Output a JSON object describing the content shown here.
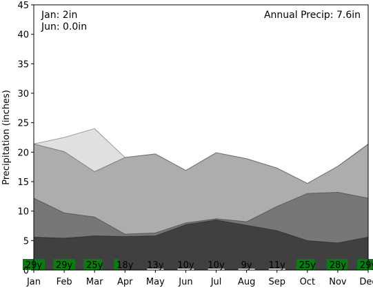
{
  "chart_data": {
    "type": "area",
    "categories": [
      "Jan",
      "Feb",
      "Mar",
      "Apr",
      "May",
      "Jun",
      "Jul",
      "Aug",
      "Sep",
      "Oct",
      "Nov",
      "Dec"
    ],
    "ylabel": "Precipitation (inches)",
    "ylim": [
      0,
      45
    ],
    "yticks": [
      0,
      5,
      10,
      15,
      20,
      25,
      30,
      35,
      40,
      45
    ],
    "grid": false,
    "annotations": {
      "top_left_1": "Jan: 2in",
      "top_left_2": "Jun: 0.0in",
      "top_right": "Annual Precip: 7.6in"
    },
    "series": [
      {
        "values": [
          21.4,
          22.5,
          24.0,
          19.1,
          19.7,
          16.9,
          19.9,
          18.9,
          17.3,
          14.7,
          17.6,
          21.4
        ],
        "color": "#e0e0e0"
      },
      {
        "values": [
          21.4,
          20.1,
          16.7,
          19.1,
          19.7,
          16.9,
          19.9,
          18.9,
          17.3,
          14.7,
          17.6,
          21.3
        ],
        "color": "#adadad"
      },
      {
        "values": [
          12.2,
          9.7,
          9.0,
          6.1,
          6.3,
          8.0,
          8.7,
          8.2,
          10.8,
          13.0,
          13.2,
          12.2
        ],
        "color": "#777777"
      },
      {
        "values": [
          5.6,
          5.4,
          5.8,
          5.7,
          5.8,
          7.7,
          8.5,
          7.6,
          6.7,
          5.0,
          4.6,
          5.6
        ],
        "color": "#404040"
      }
    ],
    "year_counts": [
      "29y",
      "29y",
      "25y",
      "18y",
      "13y",
      "10y",
      "10y",
      "9y",
      "11y",
      "25y",
      "28y",
      "29y"
    ],
    "year_bar_fill": [
      1.0,
      1.0,
      0.85,
      0.2,
      0.0,
      0.0,
      0.0,
      0.0,
      0.0,
      0.85,
      0.95,
      1.0
    ],
    "year_bar_color": "#0a7a12"
  }
}
